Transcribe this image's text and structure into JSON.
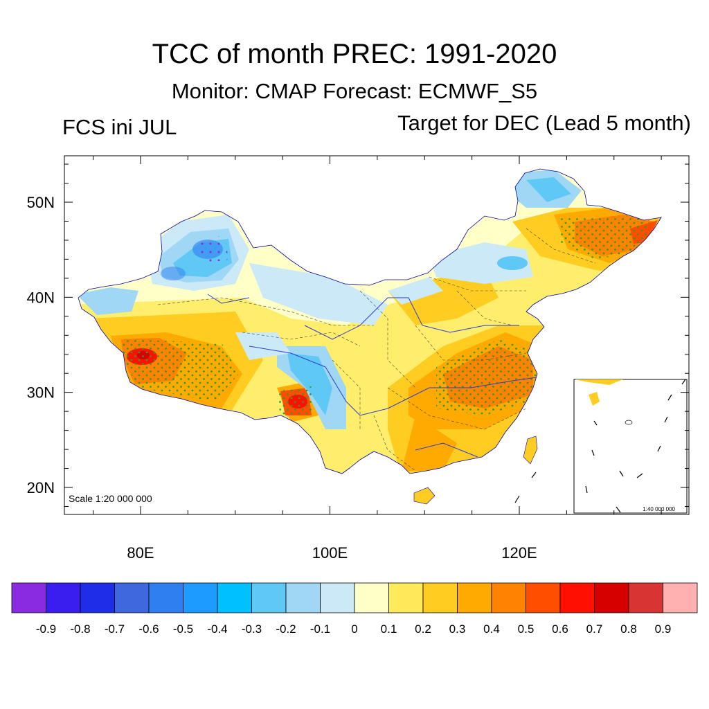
{
  "title": "TCC of month PREC: 1991-2020",
  "subtitle": "Monitor: CMAP   Forecast: ECMWF_S5",
  "left_label": "FCS ini JUL",
  "right_label": "Target for DEC (Lead 5 month)",
  "scale_main": "Scale 1:20 000 000",
  "scale_inset": "1:40 000 000",
  "lat_ticks": [
    "20N",
    "30N",
    "40N",
    "50N"
  ],
  "lon_ticks": [
    "80E",
    "100E",
    "120E"
  ],
  "colorbar": {
    "colors": [
      "#8a2be2",
      "#3a1ef0",
      "#1e2ee8",
      "#3f68df",
      "#2f7ff0",
      "#1e9bff",
      "#00c0ff",
      "#5fc8f5",
      "#9fd7f5",
      "#cce9f8",
      "#ffffc8",
      "#ffea5c",
      "#ffcc22",
      "#ffaa00",
      "#ff8200",
      "#ff4e00",
      "#ff1000",
      "#d60000",
      "#d83434",
      "#ffb0b0"
    ],
    "labels": [
      "-0.9",
      "-0.8",
      "-0.7",
      "-0.6",
      "-0.5",
      "-0.4",
      "-0.3",
      "-0.2",
      "-0.1",
      "0",
      "0.1",
      "0.2",
      "0.3",
      "0.4",
      "0.5",
      "0.6",
      "0.7",
      "0.8",
      "0.9"
    ]
  }
}
